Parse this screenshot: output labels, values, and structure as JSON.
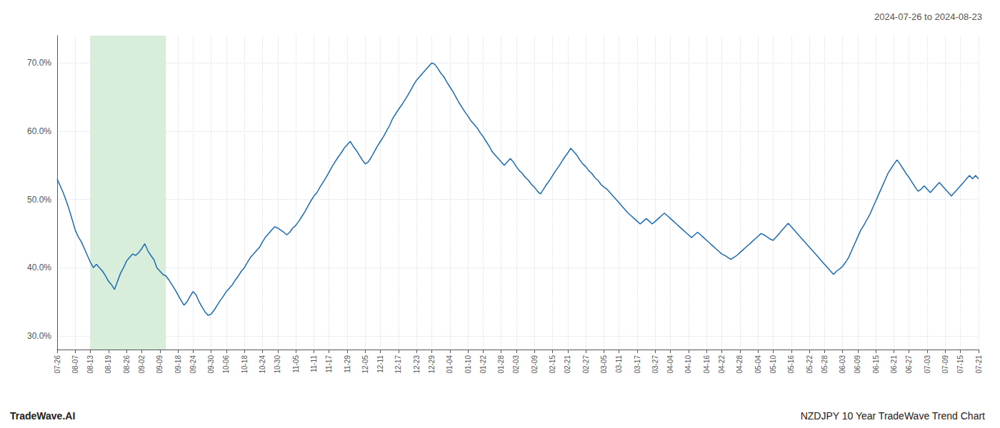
{
  "chart_data": {
    "type": "line",
    "title": "2024-07-26 to 2024-08-23",
    "annotations": [
      "TradeWave.AI",
      "NZDJPY 10 Year TradeWave Trend Chart"
    ],
    "color": "#1a6bb5",
    "highlight": {
      "start": 11,
      "end": 36,
      "color": "#d8eeda"
    },
    "grid": true,
    "ylim": [
      0.28,
      0.74
    ],
    "yticks": [
      {
        "value": 0.3,
        "label": "30.0%"
      },
      {
        "value": 0.4,
        "label": "40.0%"
      },
      {
        "value": 0.5,
        "label": "50.0%"
      },
      {
        "value": 0.6,
        "label": "60.0%"
      },
      {
        "value": 0.7,
        "label": "70.0%"
      }
    ],
    "categories": [
      "07-26",
      null,
      null,
      null,
      null,
      null,
      "08-07",
      null,
      null,
      null,
      null,
      "08-13",
      null,
      null,
      null,
      null,
      null,
      "08-19",
      null,
      null,
      null,
      null,
      null,
      "08-26",
      null,
      null,
      null,
      null,
      "09-02",
      null,
      null,
      null,
      null,
      null,
      "09-09",
      null,
      null,
      null,
      null,
      null,
      "09-18",
      null,
      null,
      null,
      null,
      "09-24",
      null,
      null,
      null,
      null,
      null,
      "09-30",
      null,
      null,
      null,
      null,
      "10-06",
      null,
      null,
      null,
      null,
      null,
      "10-18",
      null,
      null,
      null,
      null,
      null,
      "10-24",
      null,
      null,
      null,
      null,
      "10-30",
      null,
      null,
      null,
      null,
      null,
      "11-05",
      null,
      null,
      null,
      null,
      null,
      "11-11",
      null,
      null,
      null,
      null,
      "11-17",
      null,
      null,
      null,
      null,
      null,
      "11-29",
      null,
      null,
      null,
      null,
      null,
      "12-05",
      null,
      null,
      null,
      null,
      "12-11",
      null,
      null,
      null,
      null,
      null,
      "12-17",
      null,
      null,
      null,
      null,
      null,
      "12-23",
      null,
      null,
      null,
      null,
      "12-29",
      null,
      null,
      null,
      null,
      null,
      "01-04",
      null,
      null,
      null,
      null,
      null,
      "01-10",
      null,
      null,
      null,
      null,
      "01-22",
      null,
      null,
      null,
      null,
      null,
      "01-28",
      null,
      null,
      null,
      null,
      "02-03",
      null,
      null,
      null,
      null,
      null,
      "02-09",
      null,
      null,
      null,
      null,
      null,
      "02-15",
      null,
      null,
      null,
      null,
      "02-21",
      null,
      null,
      null,
      null,
      null,
      "02-27",
      null,
      null,
      null,
      null,
      null,
      "03-05",
      null,
      null,
      null,
      null,
      "03-11",
      null,
      null,
      null,
      null,
      null,
      "03-17",
      null,
      null,
      null,
      null,
      null,
      "03-27",
      null,
      null,
      null,
      null,
      "04-04",
      null,
      null,
      null,
      null,
      null,
      "04-10",
      null,
      null,
      null,
      null,
      null,
      "04-16",
      null,
      null,
      null,
      null,
      "04-22",
      null,
      null,
      null,
      null,
      null,
      "04-28",
      null,
      null,
      null,
      null,
      null,
      "05-04",
      null,
      null,
      null,
      null,
      "05-10",
      null,
      null,
      null,
      null,
      null,
      "05-16",
      null,
      null,
      null,
      null,
      null,
      "05-22",
      null,
      null,
      null,
      null,
      "05-28",
      null,
      null,
      null,
      null,
      null,
      "06-03",
      null,
      null,
      null,
      null,
      "06-09",
      null,
      null,
      null,
      null,
      null,
      "06-15",
      null,
      null,
      null,
      null,
      null,
      "06-21",
      null,
      null,
      null,
      null,
      "06-27",
      null,
      null,
      null,
      null,
      null,
      "07-03",
      null,
      null,
      null,
      null,
      null,
      "07-09",
      null,
      null,
      null,
      null,
      "07-15",
      null,
      null,
      null,
      null,
      null,
      "07-21"
    ],
    "values": [
      0.53,
      0.52,
      0.51,
      0.498,
      0.485,
      0.47,
      0.455,
      0.445,
      0.438,
      0.428,
      0.418,
      0.408,
      0.4,
      0.405,
      0.4,
      0.395,
      0.388,
      0.38,
      0.375,
      0.368,
      0.38,
      0.392,
      0.4,
      0.41,
      0.415,
      0.42,
      0.418,
      0.422,
      0.428,
      0.435,
      0.425,
      0.418,
      0.412,
      0.4,
      0.395,
      0.39,
      0.388,
      0.382,
      0.375,
      0.368,
      0.36,
      0.352,
      0.345,
      0.35,
      0.358,
      0.365,
      0.36,
      0.35,
      0.342,
      0.335,
      0.33,
      0.332,
      0.338,
      0.345,
      0.352,
      0.358,
      0.365,
      0.37,
      0.375,
      0.382,
      0.388,
      0.395,
      0.4,
      0.408,
      0.415,
      0.42,
      0.425,
      0.43,
      0.438,
      0.445,
      0.45,
      0.455,
      0.46,
      0.458,
      0.455,
      0.452,
      0.448,
      0.452,
      0.458,
      0.462,
      0.468,
      0.475,
      0.482,
      0.49,
      0.498,
      0.505,
      0.51,
      0.518,
      0.525,
      0.532,
      0.54,
      0.548,
      0.555,
      0.562,
      0.568,
      0.575,
      0.58,
      0.585,
      0.578,
      0.572,
      0.565,
      0.558,
      0.552,
      0.555,
      0.562,
      0.57,
      0.578,
      0.585,
      0.592,
      0.6,
      0.608,
      0.618,
      0.625,
      0.632,
      0.638,
      0.645,
      0.652,
      0.66,
      0.668,
      0.675,
      0.68,
      0.685,
      0.69,
      0.695,
      0.7,
      0.698,
      0.692,
      0.685,
      0.68,
      0.672,
      0.665,
      0.658,
      0.65,
      0.642,
      0.635,
      0.628,
      0.622,
      0.615,
      0.61,
      0.605,
      0.598,
      0.592,
      0.585,
      0.578,
      0.57,
      0.565,
      0.56,
      0.555,
      0.55,
      0.555,
      0.56,
      0.555,
      0.548,
      0.542,
      0.538,
      0.532,
      0.528,
      0.522,
      0.518,
      0.512,
      0.508,
      0.515,
      0.522,
      0.528,
      0.535,
      0.542,
      0.548,
      0.555,
      0.562,
      0.568,
      0.575,
      0.57,
      0.565,
      0.558,
      0.552,
      0.548,
      0.542,
      0.538,
      0.532,
      0.528,
      0.522,
      0.518,
      0.515,
      0.51,
      0.505,
      0.5,
      0.495,
      0.49,
      0.485,
      0.48,
      0.476,
      0.472,
      0.468,
      0.464,
      0.468,
      0.472,
      0.468,
      0.464,
      0.468,
      0.472,
      0.476,
      0.48,
      0.476,
      0.472,
      0.468,
      0.464,
      0.46,
      0.456,
      0.452,
      0.448,
      0.444,
      0.448,
      0.452,
      0.448,
      0.444,
      0.44,
      0.436,
      0.432,
      0.428,
      0.424,
      0.42,
      0.418,
      0.415,
      0.412,
      0.415,
      0.418,
      0.422,
      0.426,
      0.43,
      0.434,
      0.438,
      0.442,
      0.446,
      0.45,
      0.448,
      0.445,
      0.442,
      0.44,
      0.445,
      0.45,
      0.455,
      0.46,
      0.465,
      0.46,
      0.455,
      0.45,
      0.445,
      0.44,
      0.435,
      0.43,
      0.425,
      0.42,
      0.415,
      0.41,
      0.405,
      0.4,
      0.395,
      0.39,
      0.395,
      0.398,
      0.402,
      0.408,
      0.415,
      0.425,
      0.435,
      0.445,
      0.455,
      0.462,
      0.47,
      0.478,
      0.488,
      0.498,
      0.508,
      0.518,
      0.528,
      0.538,
      0.545,
      0.552,
      0.558,
      0.552,
      0.545,
      0.538,
      0.532,
      0.525,
      0.518,
      0.512,
      0.515,
      0.52,
      0.515,
      0.51,
      0.515,
      0.52,
      0.525,
      0.52,
      0.515,
      0.51,
      0.505,
      0.51,
      0.515,
      0.52,
      0.525,
      0.53,
      0.535,
      0.53,
      0.535,
      0.53
    ]
  }
}
